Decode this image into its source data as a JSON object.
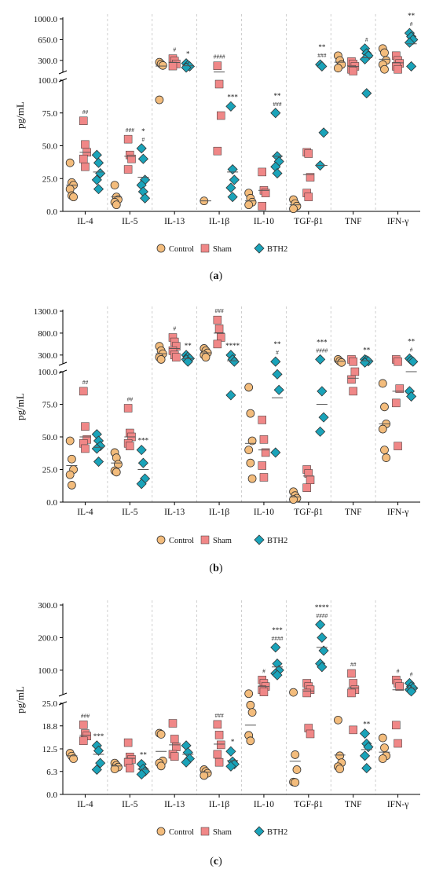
{
  "groups": [
    "Control",
    "Sham",
    "BTH2"
  ],
  "colors": {
    "Control": "#f3bc7c",
    "Sham": "#f08787",
    "BTH2": "#1aa3b9",
    "stroke": "#333333",
    "dash": "#c4c4c4"
  },
  "chart_data": [
    {
      "type": "scatter",
      "panel_label": "(a)",
      "ylabel": "pg/mL",
      "categories": [
        "IL-4",
        "IL-5",
        "IL-13",
        "IL-1β",
        "IL-10",
        "TGF-β1",
        "TNF",
        "IFN-γ"
      ],
      "axis": {
        "lower": {
          "range": [
            0,
            100
          ],
          "ticks": [
            0,
            25,
            50,
            75,
            100
          ],
          "tick_labels": [
            "0.0",
            "25.0",
            "50.0",
            "75.0",
            "100.0"
          ]
        },
        "upper": {
          "range": [
            100,
            1000
          ],
          "ticks": [
            300,
            650,
            1000
          ],
          "tick_labels": [
            "300.0",
            "650.0",
            "1000.0"
          ]
        }
      },
      "points": {
        "Control": [
          [
            37,
            22,
            20,
            17,
            12,
            11
          ],
          [
            20,
            11,
            9,
            7,
            5
          ],
          [
            270,
            240,
            215,
            85
          ],
          [
            8
          ],
          [
            14,
            10,
            7,
            5
          ],
          [
            9,
            6,
            4,
            2
          ],
          [
            380,
            300,
            230,
            170
          ],
          [
            500,
            430,
            300,
            230,
            150
          ]
        ],
        "Sham": [
          [
            69,
            51,
            45,
            40,
            34
          ],
          [
            55,
            43,
            40,
            32
          ],
          [
            330,
            290,
            240,
            205
          ],
          [
            210,
            97,
            73,
            46
          ],
          [
            30,
            16,
            14,
            4
          ],
          [
            45,
            44,
            26,
            14,
            11
          ],
          [
            280,
            240,
            200,
            150,
            120
          ],
          [
            380,
            300,
            250,
            200,
            150
          ]
        ],
        "BTH2": [
          [
            43,
            37,
            29,
            24,
            17
          ],
          [
            48,
            40,
            24,
            20,
            15,
            10
          ],
          [
            250,
            220,
            200,
            180
          ],
          [
            80,
            32,
            24,
            18,
            11
          ],
          [
            75,
            42,
            38,
            34,
            29
          ],
          [
            230,
            200,
            60,
            35
          ],
          [
            500,
            420,
            380,
            320,
            90
          ],
          [
            760,
            700,
            650,
            600,
            200
          ]
        ]
      },
      "means": {
        "Control": [
          20,
          11,
          205,
          8,
          8,
          5,
          270,
          320
        ],
        "Sham": [
          45,
          42,
          265,
          105,
          16,
          28,
          200,
          260
        ],
        "BTH2": [
          30,
          26,
          210,
          30,
          42,
          35,
          345,
          580
        ]
      },
      "annotations": [
        {
          "cat": 0,
          "group": "Sham",
          "lines": [
            "##"
          ]
        },
        {
          "cat": 1,
          "group": "Sham",
          "lines": [
            "###"
          ]
        },
        {
          "cat": 1,
          "group": "BTH2",
          "lines": [
            "*",
            "#"
          ]
        },
        {
          "cat": 2,
          "group": "Sham",
          "lines": [
            "#"
          ]
        },
        {
          "cat": 2,
          "group": "BTH2",
          "lines": [
            "*"
          ]
        },
        {
          "cat": 3,
          "group": "Sham",
          "lines": [
            "####"
          ]
        },
        {
          "cat": 3,
          "group": "BTH2",
          "lines": [
            "***"
          ]
        },
        {
          "cat": 4,
          "group": "BTH2",
          "lines": [
            "**",
            "###"
          ]
        },
        {
          "cat": 5,
          "group": "BTH2",
          "lines": [
            "**",
            "###"
          ]
        },
        {
          "cat": 6,
          "group": "BTH2",
          "lines": [
            "#"
          ]
        },
        {
          "cat": 7,
          "group": "BTH2",
          "lines": [
            "**",
            "#"
          ]
        }
      ]
    },
    {
      "type": "scatter",
      "panel_label": "(b)",
      "ylabel": "pg/mL",
      "categories": [
        "IL-4",
        "IL-5",
        "IL-13",
        "IL-1β",
        "IL-10",
        "TGF-β1",
        "TNF",
        "IFN-γ"
      ],
      "axis": {
        "lower": {
          "range": [
            0,
            100
          ],
          "ticks": [
            0,
            25,
            50,
            75,
            100
          ],
          "tick_labels": [
            "0.0",
            "25.0",
            "50.0",
            "75.0",
            "100.0"
          ]
        },
        "upper": {
          "range": [
            100,
            1300
          ],
          "ticks": [
            300,
            800,
            1300
          ],
          "tick_labels": [
            "300.0",
            "800.0",
            "1300.0"
          ]
        }
      },
      "points": {
        "Control": [
          [
            47,
            33,
            25,
            21,
            13
          ],
          [
            38,
            34,
            29,
            24,
            23
          ],
          [
            500,
            400,
            330,
            250,
            200
          ],
          [
            450,
            400,
            350,
            300,
            250
          ],
          [
            88,
            68,
            47,
            40,
            30,
            18
          ],
          [
            8,
            5,
            3,
            2
          ],
          [
            200,
            160,
            130
          ],
          [
            91,
            73,
            60,
            56,
            40,
            34
          ]
        ],
        "Sham": [
          [
            85,
            58,
            48,
            45,
            41
          ],
          [
            72,
            53,
            50,
            45,
            43
          ],
          [
            700,
            600,
            500,
            400,
            300,
            250
          ],
          [
            1100,
            900,
            700,
            550
          ],
          [
            63,
            48,
            38,
            28,
            19
          ],
          [
            25,
            22,
            17,
            11
          ],
          [
            200,
            150,
            100,
            94,
            85
          ],
          [
            200,
            150,
            87,
            76,
            43
          ]
        ],
        "BTH2": [
          [
            52,
            47,
            43,
            41,
            31
          ],
          [
            40,
            30,
            18,
            14
          ],
          [
            300,
            260,
            220,
            200,
            150
          ],
          [
            300,
            200,
            150,
            82
          ],
          [
            150,
            98,
            86,
            38
          ],
          [
            200,
            85,
            65,
            54
          ],
          [
            200,
            180,
            160,
            130
          ],
          [
            220,
            180,
            150,
            85,
            81
          ]
        ]
      },
      "means": {
        "Control": [
          28,
          30,
          330,
          350,
          45,
          4,
          160,
          60
        ],
        "Sham": [
          50,
          50,
          450,
          800,
          40,
          20,
          95,
          85
        ],
        "BTH2": [
          42,
          25,
          220,
          170,
          80,
          75,
          170,
          100
        ]
      },
      "annotations": [
        {
          "cat": 0,
          "group": "Sham",
          "lines": [
            "##"
          ]
        },
        {
          "cat": 1,
          "group": "Sham",
          "lines": [
            "##"
          ]
        },
        {
          "cat": 1,
          "group": "BTH2",
          "lines": [
            "***"
          ]
        },
        {
          "cat": 2,
          "group": "Sham",
          "lines": [
            "#"
          ]
        },
        {
          "cat": 2,
          "group": "BTH2",
          "lines": [
            "**"
          ]
        },
        {
          "cat": 3,
          "group": "Sham",
          "lines": [
            "###"
          ]
        },
        {
          "cat": 3,
          "group": "BTH2",
          "lines": [
            "****"
          ]
        },
        {
          "cat": 4,
          "group": "BTH2",
          "lines": [
            "**",
            "#"
          ]
        },
        {
          "cat": 5,
          "group": "BTH2",
          "lines": [
            "***",
            "####"
          ]
        },
        {
          "cat": 6,
          "group": "BTH2",
          "lines": [
            "**"
          ]
        },
        {
          "cat": 7,
          "group": "BTH2",
          "lines": [
            "**",
            "#"
          ]
        }
      ]
    },
    {
      "type": "scatter",
      "panel_label": "(c)",
      "ylabel": "pg/mL",
      "categories": [
        "IL-4",
        "IL-5",
        "IL-13",
        "IL-1β",
        "IL-10",
        "TGF-β1",
        "TNF",
        "IFN-γ"
      ],
      "axis": {
        "lower": {
          "range": [
            0,
            25
          ],
          "ticks": [
            0,
            6.3,
            12.5,
            18.8,
            25
          ],
          "tick_labels": [
            "0.0",
            "6.3",
            "12.5",
            "18.8",
            "25.0"
          ]
        },
        "upper": {
          "range": [
            25,
            300
          ],
          "ticks": [
            100,
            200,
            300
          ],
          "tick_labels": [
            "100.0",
            "200.0",
            "300.0"
          ]
        }
      },
      "points": {
        "Control": [
          [
            11.3,
            10.5,
            9.8
          ],
          [
            8.6,
            8.0,
            7.5,
            7.0
          ],
          [
            16.8,
            16.5,
            9.2,
            8.6,
            7.8
          ],
          [
            6.8,
            6.3,
            5.8,
            5.2
          ],
          [
            28,
            24.5,
            22.5,
            16.2,
            14.7
          ],
          [
            32,
            10.9,
            6.8,
            3.4,
            3.3
          ],
          [
            20.4,
            10.6,
            8.7,
            7.6,
            7.0
          ],
          [
            15.5,
            12.8,
            10.6,
            9.8
          ]
        ],
        "Sham": [
          [
            19.1,
            16.7,
            16.0,
            14.7
          ],
          [
            14.2,
            10.3,
            9.6,
            8.8,
            7.2
          ],
          [
            19.5,
            15.2,
            13.0,
            11.0,
            10.4
          ],
          [
            19.2,
            16.3,
            13.6,
            11.0,
            8.8
          ],
          [
            70,
            60,
            50,
            40,
            33
          ],
          [
            60,
            50,
            40,
            30,
            18.2,
            16.6
          ],
          [
            90,
            60,
            40,
            30,
            17.7
          ],
          [
            70,
            60,
            50,
            19.0,
            14.0
          ]
        ],
        "BTH2": [
          [
            13.4,
            12.0,
            8.6,
            6.8
          ],
          [
            8.3,
            7.0,
            6.3,
            5.5
          ],
          [
            13.4,
            11.5,
            9.8,
            8.8
          ],
          [
            11.8,
            9.0,
            8.3,
            7.7
          ],
          [
            170,
            120,
            100,
            90,
            85
          ],
          [
            240,
            200,
            160,
            120,
            110
          ],
          [
            16.7,
            13.9,
            13.0,
            10.6,
            7.2
          ],
          [
            60,
            50,
            45,
            40,
            35
          ]
        ]
      },
      "means": {
        "Control": [
          10.6,
          7.8,
          11.8,
          6.1,
          19.0,
          9.1,
          10.8,
          11.6
        ],
        "Sham": [
          16.2,
          9.9,
          13.6,
          13.8,
          50,
          36,
          45,
          40
        ],
        "BTH2": [
          11.0,
          6.9,
          11.0,
          9.3,
          110,
          170,
          12.3,
          45
        ]
      },
      "annotations": [
        {
          "cat": 0,
          "group": "Sham",
          "lines": [
            "###"
          ]
        },
        {
          "cat": 0,
          "group": "BTH2",
          "lines": [
            "***"
          ]
        },
        {
          "cat": 1,
          "group": "BTH2",
          "lines": [
            "**"
          ]
        },
        {
          "cat": 3,
          "group": "Sham",
          "lines": [
            "###"
          ]
        },
        {
          "cat": 3,
          "group": "BTH2",
          "lines": [
            "*"
          ]
        },
        {
          "cat": 4,
          "group": "Sham",
          "lines": [
            "#"
          ]
        },
        {
          "cat": 4,
          "group": "BTH2",
          "lines": [
            "***",
            "####"
          ]
        },
        {
          "cat": 5,
          "group": "BTH2",
          "lines": [
            "****",
            "####"
          ]
        },
        {
          "cat": 6,
          "group": "Sham",
          "lines": [
            "##"
          ]
        },
        {
          "cat": 6,
          "group": "BTH2",
          "lines": [
            "**"
          ]
        },
        {
          "cat": 7,
          "group": "Sham",
          "lines": [
            "#"
          ]
        },
        {
          "cat": 7,
          "group": "BTH2",
          "lines": [
            "#"
          ]
        }
      ]
    }
  ]
}
